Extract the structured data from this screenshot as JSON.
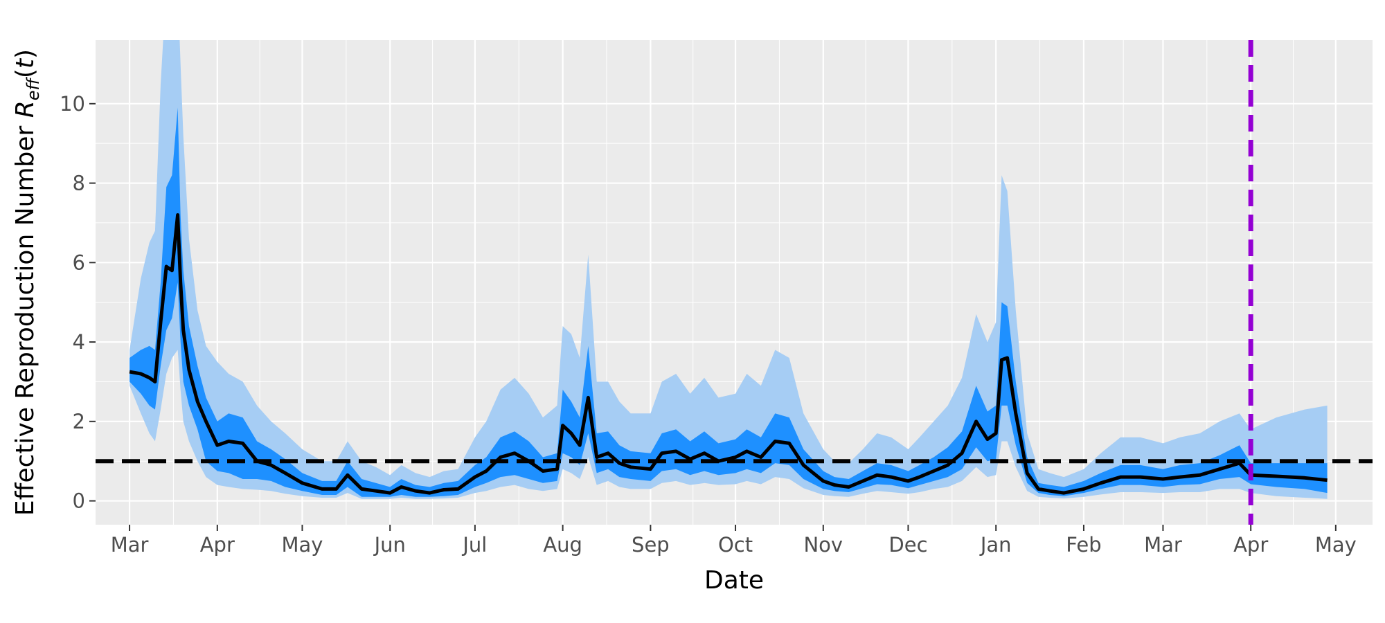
{
  "chart_data": {
    "type": "line",
    "title": "",
    "xlabel": "Date",
    "ylabel": {
      "prefix": "Effective Reproduction Number ",
      "symbol": "R",
      "subscript": "eff",
      "suffix_open": "(",
      "variable": "t",
      "suffix_close": ")"
    },
    "x_domain": [
      "2020-02-18",
      "2021-05-14"
    ],
    "ylim": [
      -0.6,
      11.6
    ],
    "grid": true,
    "legend": "none",
    "y_ticks": [
      {
        "value": 0,
        "label": "0"
      },
      {
        "value": 2,
        "label": "2"
      },
      {
        "value": 4,
        "label": "4"
      },
      {
        "value": 6,
        "label": "6"
      },
      {
        "value": 8,
        "label": "8"
      },
      {
        "value": 10,
        "label": "10"
      }
    ],
    "x_ticks": [
      {
        "date": "2020-03-01",
        "label": "Mar"
      },
      {
        "date": "2020-04-01",
        "label": "Apr"
      },
      {
        "date": "2020-05-01",
        "label": "May"
      },
      {
        "date": "2020-06-01",
        "label": "Jun"
      },
      {
        "date": "2020-07-01",
        "label": "Jul"
      },
      {
        "date": "2020-08-01",
        "label": "Aug"
      },
      {
        "date": "2020-09-01",
        "label": "Sep"
      },
      {
        "date": "2020-10-01",
        "label": "Oct"
      },
      {
        "date": "2020-11-01",
        "label": "Nov"
      },
      {
        "date": "2020-12-01",
        "label": "Dec"
      },
      {
        "date": "2021-01-01",
        "label": "Jan"
      },
      {
        "date": "2021-02-01",
        "label": "Feb"
      },
      {
        "date": "2021-03-01",
        "label": "Mar"
      },
      {
        "date": "2021-04-01",
        "label": "Apr"
      },
      {
        "date": "2021-05-01",
        "label": "May"
      }
    ],
    "reference_line": {
      "y": 1,
      "color": "#000000",
      "style": "dashed"
    },
    "forecast_start": {
      "date": "2021-04-01",
      "color": "#9400d3",
      "style": "dashed"
    },
    "series": {
      "colors": {
        "median": "#000000",
        "inner_band": "#1e90ff",
        "outer_band": "#a6cdf4",
        "panel": "#ebebeb",
        "grid": "#ffffff"
      },
      "dates": [
        "2020-03-01",
        "2020-03-05",
        "2020-03-08",
        "2020-03-10",
        "2020-03-12",
        "2020-03-14",
        "2020-03-16",
        "2020-03-18",
        "2020-03-19",
        "2020-03-20",
        "2020-03-22",
        "2020-03-25",
        "2020-03-28",
        "2020-04-01",
        "2020-04-05",
        "2020-04-10",
        "2020-04-15",
        "2020-04-20",
        "2020-04-25",
        "2020-05-01",
        "2020-05-08",
        "2020-05-13",
        "2020-05-17",
        "2020-05-22",
        "2020-05-27",
        "2020-06-01",
        "2020-06-05",
        "2020-06-10",
        "2020-06-15",
        "2020-06-20",
        "2020-06-25",
        "2020-07-01",
        "2020-07-05",
        "2020-07-10",
        "2020-07-15",
        "2020-07-20",
        "2020-07-25",
        "2020-07-30",
        "2020-08-01",
        "2020-08-04",
        "2020-08-07",
        "2020-08-10",
        "2020-08-13",
        "2020-08-17",
        "2020-08-21",
        "2020-08-25",
        "2020-09-01",
        "2020-09-05",
        "2020-09-10",
        "2020-09-15",
        "2020-09-20",
        "2020-09-25",
        "2020-10-01",
        "2020-10-05",
        "2020-10-10",
        "2020-10-15",
        "2020-10-20",
        "2020-10-25",
        "2020-11-01",
        "2020-11-05",
        "2020-11-10",
        "2020-11-15",
        "2020-11-20",
        "2020-11-25",
        "2020-12-01",
        "2020-12-05",
        "2020-12-10",
        "2020-12-15",
        "2020-12-20",
        "2020-12-25",
        "2020-12-29",
        "2021-01-01",
        "2021-01-03",
        "2021-01-05",
        "2021-01-08",
        "2021-01-12",
        "2021-01-16",
        "2021-01-20",
        "2021-01-25",
        "2021-02-01",
        "2021-02-07",
        "2021-02-14",
        "2021-02-21",
        "2021-03-01",
        "2021-03-07",
        "2021-03-14",
        "2021-03-21",
        "2021-03-28",
        "2021-04-01",
        "2021-04-10",
        "2021-04-20",
        "2021-04-28"
      ],
      "median": [
        3.25,
        3.2,
        3.1,
        3.0,
        4.5,
        5.9,
        5.8,
        7.2,
        5.5,
        4.3,
        3.3,
        2.5,
        2.0,
        1.4,
        1.5,
        1.45,
        1.0,
        0.9,
        0.7,
        0.45,
        0.3,
        0.3,
        0.65,
        0.3,
        0.25,
        0.2,
        0.35,
        0.25,
        0.2,
        0.28,
        0.3,
        0.6,
        0.75,
        1.1,
        1.2,
        1.0,
        0.75,
        0.8,
        1.9,
        1.7,
        1.4,
        2.6,
        1.1,
        1.2,
        0.95,
        0.85,
        0.8,
        1.2,
        1.25,
        1.05,
        1.2,
        1.0,
        1.1,
        1.25,
        1.1,
        1.5,
        1.45,
        0.9,
        0.5,
        0.4,
        0.35,
        0.5,
        0.65,
        0.6,
        0.5,
        0.6,
        0.75,
        0.9,
        1.2,
        2.0,
        1.55,
        1.7,
        3.55,
        3.6,
        2.2,
        0.7,
        0.3,
        0.25,
        0.2,
        0.3,
        0.45,
        0.6,
        0.6,
        0.55,
        0.6,
        0.65,
        0.8,
        0.95,
        0.65,
        0.62,
        0.58,
        0.52
      ],
      "inner_lower": [
        3.0,
        2.7,
        2.4,
        2.3,
        3.4,
        4.3,
        4.6,
        5.5,
        4.0,
        3.0,
        2.4,
        1.8,
        1.0,
        0.75,
        0.7,
        0.55,
        0.55,
        0.5,
        0.35,
        0.25,
        0.15,
        0.15,
        0.35,
        0.1,
        0.1,
        0.1,
        0.15,
        0.1,
        0.1,
        0.12,
        0.15,
        0.35,
        0.45,
        0.6,
        0.65,
        0.55,
        0.45,
        0.5,
        1.2,
        1.1,
        0.9,
        1.7,
        0.7,
        0.8,
        0.6,
        0.55,
        0.5,
        0.75,
        0.8,
        0.65,
        0.75,
        0.65,
        0.7,
        0.8,
        0.7,
        0.95,
        0.9,
        0.55,
        0.3,
        0.25,
        0.22,
        0.32,
        0.42,
        0.4,
        0.32,
        0.4,
        0.5,
        0.6,
        0.8,
        1.35,
        1.0,
        1.05,
        2.4,
        2.4,
        1.4,
        0.45,
        0.2,
        0.15,
        0.12,
        0.2,
        0.3,
        0.4,
        0.4,
        0.35,
        0.4,
        0.42,
        0.55,
        0.6,
        0.42,
        0.35,
        0.3,
        0.2
      ],
      "inner_upper": [
        3.6,
        3.8,
        3.9,
        3.8,
        5.5,
        7.9,
        8.2,
        9.9,
        7.2,
        5.8,
        4.4,
        3.4,
        2.6,
        2.0,
        2.2,
        2.1,
        1.5,
        1.3,
        1.05,
        0.7,
        0.5,
        0.5,
        1.0,
        0.55,
        0.45,
        0.35,
        0.55,
        0.4,
        0.35,
        0.45,
        0.5,
        0.9,
        1.1,
        1.6,
        1.75,
        1.5,
        1.1,
        1.2,
        2.8,
        2.5,
        2.1,
        3.9,
        1.7,
        1.75,
        1.4,
        1.25,
        1.2,
        1.7,
        1.8,
        1.5,
        1.75,
        1.45,
        1.55,
        1.8,
        1.6,
        2.2,
        2.1,
        1.3,
        0.75,
        0.6,
        0.55,
        0.75,
        0.95,
        0.9,
        0.75,
        0.9,
        1.1,
        1.35,
        1.75,
        2.9,
        2.25,
        2.4,
        5.0,
        4.9,
        3.0,
        1.1,
        0.45,
        0.4,
        0.35,
        0.5,
        0.7,
        0.9,
        0.9,
        0.8,
        0.9,
        0.95,
        1.15,
        1.4,
        0.95,
        0.95,
        0.95,
        0.95
      ],
      "outer_lower": [
        2.9,
        2.2,
        1.7,
        1.5,
        2.3,
        3.2,
        3.6,
        3.8,
        2.8,
        2.0,
        1.5,
        1.0,
        0.6,
        0.4,
        0.35,
        0.3,
        0.28,
        0.25,
        0.18,
        0.12,
        0.08,
        0.08,
        0.2,
        0.05,
        0.05,
        0.05,
        0.08,
        0.05,
        0.05,
        0.06,
        0.08,
        0.2,
        0.25,
        0.35,
        0.4,
        0.3,
        0.25,
        0.3,
        0.8,
        0.7,
        0.55,
        1.1,
        0.4,
        0.5,
        0.35,
        0.3,
        0.3,
        0.45,
        0.5,
        0.4,
        0.45,
        0.4,
        0.42,
        0.5,
        0.42,
        0.6,
        0.55,
        0.32,
        0.15,
        0.12,
        0.1,
        0.18,
        0.25,
        0.22,
        0.18,
        0.22,
        0.3,
        0.35,
        0.5,
        0.85,
        0.6,
        0.65,
        1.5,
        1.5,
        0.85,
        0.25,
        0.1,
        0.08,
        0.06,
        0.1,
        0.16,
        0.22,
        0.22,
        0.2,
        0.22,
        0.22,
        0.3,
        0.3,
        0.2,
        0.12,
        0.08,
        0.05
      ],
      "outer_upper": [
        3.8,
        5.6,
        6.5,
        6.8,
        10.5,
        13,
        13,
        13,
        11,
        9.2,
        6.6,
        4.8,
        3.9,
        3.5,
        3.2,
        3.0,
        2.4,
        2.0,
        1.7,
        1.3,
        1.0,
        1.0,
        1.5,
        1.0,
        0.85,
        0.65,
        0.9,
        0.7,
        0.6,
        0.75,
        0.8,
        1.6,
        2.0,
        2.8,
        3.1,
        2.7,
        2.1,
        2.4,
        4.4,
        4.2,
        3.6,
        6.2,
        3.0,
        3.0,
        2.5,
        2.2,
        2.2,
        3.0,
        3.2,
        2.7,
        3.1,
        2.6,
        2.7,
        3.2,
        2.9,
        3.8,
        3.6,
        2.2,
        1.3,
        1.0,
        0.95,
        1.3,
        1.7,
        1.6,
        1.3,
        1.6,
        2.0,
        2.4,
        3.1,
        4.7,
        4.0,
        4.5,
        8.2,
        7.8,
        4.8,
        1.7,
        0.8,
        0.7,
        0.6,
        0.8,
        1.2,
        1.6,
        1.6,
        1.45,
        1.6,
        1.7,
        2.0,
        2.2,
        1.8,
        2.1,
        2.3,
        2.4
      ]
    }
  }
}
